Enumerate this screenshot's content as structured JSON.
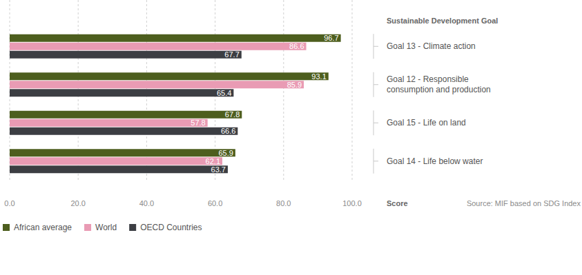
{
  "chart_data": {
    "type": "bar",
    "orientation": "horizontal",
    "y_label": "Sustainable Development Goal",
    "x_label": "Score",
    "source": "Source: MIF based on SDG Index",
    "categories": [
      "Goal 13 - Climate action",
      "Goal 12 - Responsible consumption and production",
      "Goal 15 - Life on land",
      "Goal 14 - Life below water"
    ],
    "series": [
      {
        "name": "African average",
        "color": "#4d5e1e",
        "values": [
          96.7,
          93.1,
          67.8,
          65.9
        ]
      },
      {
        "name": "World",
        "color": "#e99bb4",
        "values": [
          86.6,
          85.9,
          57.8,
          62.1
        ]
      },
      {
        "name": "OECD Countries",
        "color": "#3c3e43",
        "values": [
          67.7,
          65.4,
          66.6,
          63.7
        ]
      }
    ],
    "xlim": [
      0,
      100
    ],
    "xticks": [
      {
        "value": 0,
        "label": "0.0"
      },
      {
        "value": 20,
        "label": "20.0"
      },
      {
        "value": 40,
        "label": "40.0"
      },
      {
        "value": 60,
        "label": "60.0"
      },
      {
        "value": 80,
        "label": "80.0"
      },
      {
        "value": 100,
        "label": "100.0"
      }
    ],
    "grid": true,
    "data_labels": true,
    "legend": "bottom-left"
  }
}
